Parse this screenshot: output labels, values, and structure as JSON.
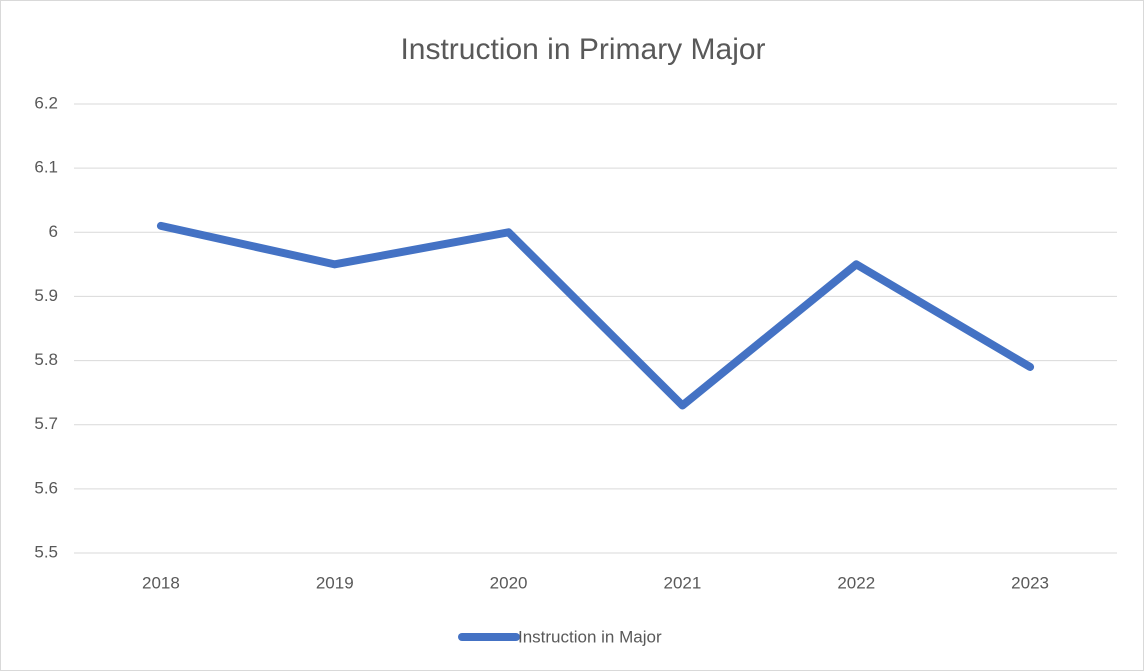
{
  "chart_data": {
    "type": "line",
    "title": "Instruction in Primary Major",
    "categories": [
      "2018",
      "2019",
      "2020",
      "2021",
      "2022",
      "2023"
    ],
    "series": [
      {
        "name": "Instruction in Major",
        "color": "#4472c4",
        "values": [
          6.01,
          5.95,
          6.0,
          5.73,
          5.95,
          5.79
        ]
      }
    ],
    "ylim": [
      5.5,
      6.2
    ],
    "yticks": [
      5.5,
      5.6,
      5.7,
      5.8,
      5.9,
      6,
      6.1,
      6.2
    ],
    "grid": true,
    "legend": "bottom"
  }
}
